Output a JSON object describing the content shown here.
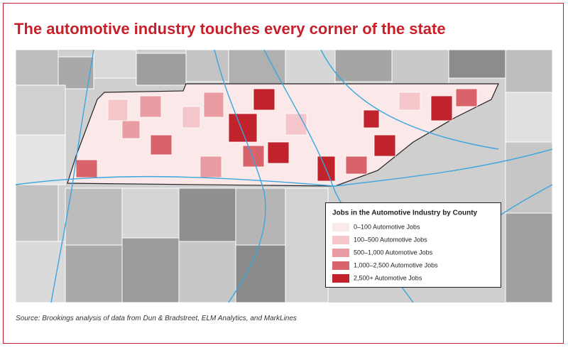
{
  "title": "The automotive industry touches every corner of the state",
  "legend": {
    "title": "Jobs in the Automotive Industry by County",
    "items": [
      {
        "label": "0–100 Automotive Jobs",
        "color": "#fbe9ea"
      },
      {
        "label": "100–500 Automotive Jobs",
        "color": "#f5c6c9"
      },
      {
        "label": "500–1,000 Automotive Jobs",
        "color": "#e99ca1"
      },
      {
        "label": "1,000–2,500 Automotive Jobs",
        "color": "#d8636b"
      },
      {
        "label": "2,500+ Automotive Jobs",
        "color": "#c1232d"
      }
    ]
  },
  "source": "Source: Brookings analysis of data from Dun & Bradstreet, ELM Analytics, and MarkLines"
}
